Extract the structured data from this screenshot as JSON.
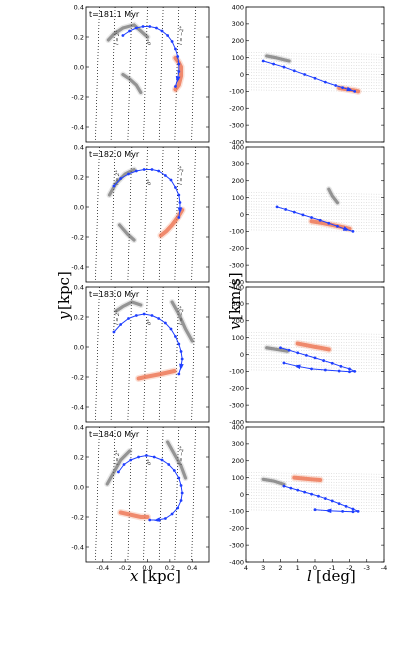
{
  "chart_data": [
    {
      "type": "line",
      "panel": "xy",
      "row": 0,
      "title": "t=181.1 Myr",
      "xlim": [
        -0.55,
        0.55
      ],
      "ylim": [
        -0.5,
        0.4
      ],
      "yticks": [
        "-0.4",
        "-0.2",
        "0.0",
        "0.2",
        "0.4"
      ],
      "line_labels": [
        "l = 2°",
        "0°",
        "l = −2°"
      ],
      "orbit": {
        "x": [
          -0.22,
          -0.16,
          -0.1,
          -0.04,
          0.02,
          0.08,
          0.13,
          0.18,
          0.22,
          0.25,
          0.27,
          0.28,
          0.28,
          0.27,
          0.25
        ],
        "y": [
          0.21,
          0.24,
          0.26,
          0.27,
          0.27,
          0.26,
          0.24,
          0.21,
          0.17,
          0.12,
          0.07,
          0.02,
          -0.03,
          -0.08,
          -0.13
        ]
      },
      "series": [
        {
          "role": "tracer",
          "x": [
            0.25,
            0.28,
            0.3,
            0.3,
            0.28,
            0.25
          ],
          "y": [
            -0.15,
            -0.12,
            -0.06,
            0.0,
            0.03,
            0.06
          ]
        },
        {
          "role": "gas",
          "x": [
            -0.35,
            -0.3,
            -0.22,
            -0.12,
            -0.06,
            0.0
          ],
          "y": [
            0.18,
            0.22,
            0.26,
            0.28,
            0.24,
            0.2
          ]
        },
        {
          "role": "gas",
          "x": [
            -0.22,
            -0.16,
            -0.1,
            -0.06
          ],
          "y": [
            -0.05,
            -0.08,
            -0.12,
            -0.17
          ]
        }
      ]
    },
    {
      "type": "line",
      "panel": "lv",
      "row": 0,
      "xlim": [
        4,
        -4
      ],
      "ylim": [
        -400,
        400
      ],
      "yticks": [
        "-400",
        "-300",
        "-200",
        "-100",
        "0",
        "100",
        "200",
        "300",
        "400"
      ],
      "orbit": {
        "x": [
          3.0,
          2.4,
          1.8,
          1.2,
          0.6,
          0.0,
          -0.6,
          -1.2,
          -1.6,
          -2.0,
          -2.3
        ],
        "y": [
          80,
          62,
          44,
          22,
          0,
          -22,
          -45,
          -65,
          -78,
          -90,
          -100
        ]
      },
      "series": [
        {
          "role": "tracer",
          "x": [
            -1.4,
            -1.7,
            -2.0,
            -2.3,
            -2.5
          ],
          "y": [
            -80,
            -85,
            -90,
            -95,
            -100
          ]
        },
        {
          "role": "gas",
          "x": [
            2.8,
            2.3,
            1.9,
            1.5
          ],
          "y": [
            110,
            100,
            90,
            80
          ]
        }
      ]
    },
    {
      "type": "line",
      "panel": "xy",
      "row": 1,
      "title": "t=182.0 Myr",
      "xlim": [
        -0.55,
        0.55
      ],
      "ylim": [
        -0.5,
        0.4
      ],
      "yticks": [
        "-0.4",
        "-0.2",
        "0.0",
        "0.2",
        "0.4"
      ],
      "line_labels": [
        "l = 2°",
        "0°",
        "l = −2°"
      ],
      "orbit": {
        "x": [
          -0.3,
          -0.24,
          -0.17,
          -0.1,
          -0.03,
          0.04,
          0.1,
          0.16,
          0.21,
          0.25,
          0.28,
          0.29,
          0.29,
          0.28
        ],
        "y": [
          0.14,
          0.19,
          0.22,
          0.24,
          0.25,
          0.25,
          0.24,
          0.21,
          0.18,
          0.13,
          0.08,
          0.03,
          -0.02,
          -0.07
        ]
      },
      "series": [
        {
          "role": "tracer",
          "x": [
            0.12,
            0.17,
            0.22,
            0.27,
            0.31
          ],
          "y": [
            -0.19,
            -0.16,
            -0.12,
            -0.07,
            -0.02
          ]
        },
        {
          "role": "gas",
          "x": [
            -0.34,
            -0.28,
            -0.2,
            -0.12
          ],
          "y": [
            0.08,
            0.16,
            0.22,
            0.25
          ]
        },
        {
          "role": "gas",
          "x": [
            -0.25,
            -0.18,
            -0.12
          ],
          "y": [
            -0.12,
            -0.18,
            -0.22
          ]
        }
      ]
    },
    {
      "type": "line",
      "panel": "lv",
      "row": 1,
      "xlim": [
        4,
        -4
      ],
      "ylim": [
        -400,
        400
      ],
      "yticks": [
        "-400",
        "-300",
        "-200",
        "-100",
        "0",
        "100",
        "200",
        "300",
        "400"
      ],
      "orbit": {
        "x": [
          2.2,
          1.7,
          1.2,
          0.7,
          0.2,
          -0.3,
          -0.8,
          -1.3,
          -1.8,
          -2.2
        ],
        "y": [
          45,
          30,
          14,
          -2,
          -18,
          -34,
          -52,
          -70,
          -88,
          -100
        ]
      },
      "series": [
        {
          "role": "tracer",
          "x": [
            0.2,
            -0.4,
            -1.0,
            -1.6,
            -2.0
          ],
          "y": [
            -40,
            -50,
            -62,
            -75,
            -85
          ]
        },
        {
          "role": "gas",
          "x": [
            -0.8,
            -1.0,
            -1.3
          ],
          "y": [
            150,
            110,
            70
          ]
        }
      ]
    },
    {
      "type": "line",
      "panel": "xy",
      "row": 2,
      "title": "t=183.0 Myr",
      "xlim": [
        -0.55,
        0.55
      ],
      "ylim": [
        -0.5,
        0.4
      ],
      "yticks": [
        "-0.4",
        "-0.2",
        "0.0",
        "0.2",
        "0.4"
      ],
      "line_labels": [
        "l = 2°",
        "0°",
        "l = −2°"
      ],
      "orbit": {
        "x": [
          -0.3,
          -0.24,
          -0.17,
          -0.1,
          -0.03,
          0.04,
          0.1,
          0.16,
          0.21,
          0.25,
          0.28,
          0.3,
          0.31,
          0.3,
          0.28
        ],
        "y": [
          0.1,
          0.15,
          0.19,
          0.21,
          0.22,
          0.21,
          0.19,
          0.16,
          0.12,
          0.07,
          0.02,
          -0.03,
          -0.08,
          -0.13,
          -0.18
        ]
      },
      "series": [
        {
          "role": "tracer",
          "x": [
            -0.08,
            -0.02,
            0.05,
            0.12,
            0.18,
            0.24
          ],
          "y": [
            -0.21,
            -0.2,
            -0.19,
            -0.18,
            -0.17,
            -0.16
          ]
        },
        {
          "role": "gas",
          "x": [
            -0.28,
            -0.22,
            -0.14,
            -0.06
          ],
          "y": [
            0.24,
            0.27,
            0.3,
            0.28
          ]
        },
        {
          "role": "gas",
          "x": [
            0.22,
            0.28,
            0.34,
            0.4
          ],
          "y": [
            0.3,
            0.22,
            0.12,
            0.04
          ]
        }
      ]
    },
    {
      "type": "line",
      "panel": "lv",
      "row": 2,
      "xlim": [
        4,
        -4
      ],
      "ylim": [
        -400,
        400
      ],
      "yticks": [
        "-400",
        "-300",
        "-200",
        "-100",
        "0",
        "100",
        "200",
        "300",
        "400"
      ],
      "orbit": {
        "x": [
          2.0,
          1.5,
          1.0,
          0.5,
          0.0,
          -0.5,
          -1.0,
          -1.5,
          -2.0,
          -2.3,
          -2.0,
          -1.4,
          -0.6,
          0.2,
          1.0,
          1.8
        ],
        "y": [
          40,
          25,
          10,
          -5,
          -20,
          -36,
          -52,
          -70,
          -85,
          -100,
          -102,
          -98,
          -92,
          -85,
          -70,
          -50
        ]
      },
      "series": [
        {
          "role": "tracer",
          "x": [
            1.0,
            0.5,
            0.0,
            -0.4,
            -0.8
          ],
          "y": [
            65,
            55,
            45,
            38,
            30
          ]
        },
        {
          "role": "gas",
          "x": [
            2.8,
            2.2,
            1.6
          ],
          "y": [
            40,
            30,
            20
          ]
        }
      ]
    },
    {
      "type": "line",
      "panel": "xy",
      "row": 3,
      "title": "t=184.0 Myr",
      "xlim": [
        -0.55,
        0.55
      ],
      "ylim": [
        -0.5,
        0.4
      ],
      "yticks": [
        "-0.4",
        "-0.2",
        "0.0",
        "0.2",
        "0.4"
      ],
      "xticks": [
        "-0.4",
        "-0.2",
        "0.0",
        "0.2",
        "0.4"
      ],
      "line_labels": [
        "l = 2°",
        "0°",
        "l = −2°"
      ],
      "orbit": {
        "x": [
          -0.26,
          -0.21,
          -0.15,
          -0.08,
          -0.01,
          0.06,
          0.13,
          0.19,
          0.24,
          0.28,
          0.3,
          0.31,
          0.3,
          0.27,
          0.22,
          0.16,
          0.09,
          0.02
        ],
        "y": [
          0.1,
          0.15,
          0.18,
          0.2,
          0.21,
          0.2,
          0.18,
          0.15,
          0.11,
          0.06,
          0.01,
          -0.04,
          -0.09,
          -0.14,
          -0.18,
          -0.21,
          -0.22,
          -0.22
        ]
      },
      "series": [
        {
          "role": "tracer",
          "x": [
            -0.24,
            -0.18,
            -0.12,
            -0.06,
            0.0
          ],
          "y": [
            -0.17,
            -0.18,
            -0.19,
            -0.2,
            -0.2
          ]
        },
        {
          "role": "gas",
          "x": [
            -0.36,
            -0.3,
            -0.24,
            -0.16
          ],
          "y": [
            0.02,
            0.1,
            0.18,
            0.24
          ]
        },
        {
          "role": "gas",
          "x": [
            0.18,
            0.24,
            0.3,
            0.34
          ],
          "y": [
            0.3,
            0.22,
            0.14,
            0.06
          ]
        }
      ]
    },
    {
      "type": "line",
      "panel": "lv",
      "row": 3,
      "xlim": [
        4,
        -4
      ],
      "ylim": [
        -400,
        400
      ],
      "xticks": [
        "4",
        "3",
        "2",
        "1",
        "0",
        "-1",
        "-2",
        "-3",
        "-4"
      ],
      "yticks": [
        "-400",
        "-300",
        "-200",
        "-100",
        "0",
        "100",
        "200",
        "300",
        "400"
      ],
      "orbit": {
        "x": [
          1.8,
          1.4,
          1.0,
          0.6,
          0.2,
          -0.2,
          -0.6,
          -1.0,
          -1.4,
          -1.8,
          -2.2,
          -2.5,
          -2.2,
          -1.6,
          -0.8,
          0.0
        ],
        "y": [
          50,
          38,
          26,
          14,
          2,
          -10,
          -24,
          -38,
          -54,
          -70,
          -86,
          -100,
          -102,
          -100,
          -96,
          -90
        ]
      },
      "series": [
        {
          "role": "tracer",
          "x": [
            1.2,
            0.7,
            0.2,
            -0.3
          ],
          "y": [
            100,
            95,
            90,
            86
          ]
        },
        {
          "role": "gas",
          "x": [
            3.0,
            2.4,
            1.8
          ],
          "y": [
            90,
            80,
            60
          ]
        }
      ]
    }
  ],
  "axis_labels": {
    "x_left_var": "x",
    "x_left_unit": "[kpc]",
    "x_right_var": "l",
    "x_right_unit": "[deg]",
    "y_left_var": "y",
    "y_left_unit": "[kpc]",
    "y_right_var": "v",
    "y_right_unit": "[km/s]"
  },
  "colors": {
    "orbit": "#1f3fff",
    "tracer": "#e8502a",
    "gas": "#444444",
    "axes": "#000000",
    "gridline": "#000000"
  }
}
